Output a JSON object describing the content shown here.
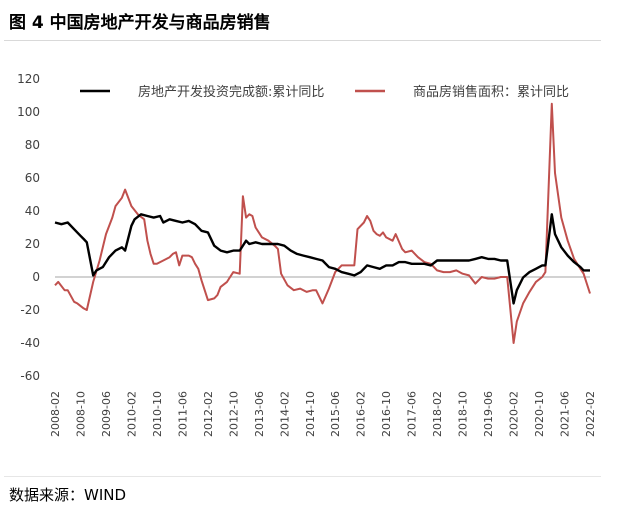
{
  "figure": {
    "title": "图 4  中国房地产开发与商品房销售",
    "source": "数据来源：WIND"
  },
  "chart_data": {
    "type": "line",
    "ylim": [
      -60,
      120
    ],
    "yticks": [
      -60,
      -40,
      -20,
      0,
      20,
      40,
      60,
      80,
      100,
      120
    ],
    "grid": false,
    "legend_position": "top",
    "x_tick_labels": [
      "2008-02",
      "2008-10",
      "2009-06",
      "2010-02",
      "2010-10",
      "2011-06",
      "2012-02",
      "2012-10",
      "2013-06",
      "2014-02",
      "2014-10",
      "2015-06",
      "2016-02",
      "2016-10",
      "2017-06",
      "2018-02",
      "2018-10",
      "2019-06",
      "2020-02",
      "2020-10",
      "2021-06",
      "2022-02"
    ],
    "x_range": [
      "2008-02",
      "2022-02"
    ],
    "series": [
      {
        "name": "房地产开发投资完成额:累计同比",
        "color": "#000000",
        "points": [
          [
            "2008-02",
            33
          ],
          [
            "2008-04",
            32
          ],
          [
            "2008-06",
            33
          ],
          [
            "2008-08",
            29
          ],
          [
            "2008-10",
            25
          ],
          [
            "2008-11",
            23
          ],
          [
            "2008-12",
            21
          ],
          [
            "2009-02",
            1
          ],
          [
            "2009-03",
            4
          ],
          [
            "2009-05",
            6
          ],
          [
            "2009-07",
            12
          ],
          [
            "2009-09",
            16
          ],
          [
            "2009-11",
            18
          ],
          [
            "2009-12",
            16
          ],
          [
            "2010-02",
            31
          ],
          [
            "2010-03",
            35
          ],
          [
            "2010-05",
            38
          ],
          [
            "2010-07",
            37
          ],
          [
            "2010-09",
            36
          ],
          [
            "2010-11",
            37
          ],
          [
            "2010-12",
            33
          ],
          [
            "2011-02",
            35
          ],
          [
            "2011-04",
            34
          ],
          [
            "2011-06",
            33
          ],
          [
            "2011-08",
            34
          ],
          [
            "2011-10",
            32
          ],
          [
            "2011-12",
            28
          ],
          [
            "2012-02",
            27
          ],
          [
            "2012-04",
            19
          ],
          [
            "2012-06",
            16
          ],
          [
            "2012-08",
            15
          ],
          [
            "2012-10",
            16
          ],
          [
            "2012-12",
            16
          ],
          [
            "2013-02",
            22
          ],
          [
            "2013-03",
            20
          ],
          [
            "2013-05",
            21
          ],
          [
            "2013-07",
            20
          ],
          [
            "2013-09",
            20
          ],
          [
            "2013-12",
            20
          ],
          [
            "2014-02",
            19
          ],
          [
            "2014-04",
            16
          ],
          [
            "2014-06",
            14
          ],
          [
            "2014-08",
            13
          ],
          [
            "2014-10",
            12
          ],
          [
            "2014-12",
            11
          ],
          [
            "2015-02",
            10
          ],
          [
            "2015-04",
            6
          ],
          [
            "2015-06",
            5
          ],
          [
            "2015-08",
            3
          ],
          [
            "2015-10",
            2
          ],
          [
            "2015-12",
            1
          ],
          [
            "2016-02",
            3
          ],
          [
            "2016-04",
            7
          ],
          [
            "2016-06",
            6
          ],
          [
            "2016-08",
            5
          ],
          [
            "2016-10",
            7
          ],
          [
            "2016-12",
            7
          ],
          [
            "2017-02",
            9
          ],
          [
            "2017-04",
            9
          ],
          [
            "2017-06",
            8
          ],
          [
            "2017-08",
            8
          ],
          [
            "2017-10",
            8
          ],
          [
            "2017-12",
            7
          ],
          [
            "2018-02",
            10
          ],
          [
            "2018-04",
            10
          ],
          [
            "2018-06",
            10
          ],
          [
            "2018-08",
            10
          ],
          [
            "2018-10",
            10
          ],
          [
            "2018-12",
            10
          ],
          [
            "2019-02",
            11
          ],
          [
            "2019-04",
            12
          ],
          [
            "2019-06",
            11
          ],
          [
            "2019-08",
            11
          ],
          [
            "2019-10",
            10
          ],
          [
            "2019-12",
            10
          ],
          [
            "2020-02",
            -16
          ],
          [
            "2020-03",
            -8
          ],
          [
            "2020-05",
            -0.3
          ],
          [
            "2020-07",
            3
          ],
          [
            "2020-09",
            5
          ],
          [
            "2020-11",
            7
          ],
          [
            "2020-12",
            7
          ],
          [
            "2021-02",
            38
          ],
          [
            "2021-03",
            26
          ],
          [
            "2021-05",
            18
          ],
          [
            "2021-07",
            13
          ],
          [
            "2021-09",
            9
          ],
          [
            "2021-11",
            6
          ],
          [
            "2021-12",
            4
          ],
          [
            "2022-02",
            4
          ]
        ]
      },
      {
        "name": "商品房销售面积：累计同比",
        "color": "#c0504d",
        "points": [
          [
            "2008-02",
            -5
          ],
          [
            "2008-03",
            -3
          ],
          [
            "2008-05",
            -8
          ],
          [
            "2008-06",
            -8
          ],
          [
            "2008-08",
            -15
          ],
          [
            "2008-09",
            -16
          ],
          [
            "2008-11",
            -19
          ],
          [
            "2008-12",
            -20
          ],
          [
            "2009-02",
            -3
          ],
          [
            "2009-04",
            10
          ],
          [
            "2009-06",
            26
          ],
          [
            "2009-08",
            36
          ],
          [
            "2009-09",
            43
          ],
          [
            "2009-11",
            48
          ],
          [
            "2009-12",
            53
          ],
          [
            "2010-02",
            43
          ],
          [
            "2010-04",
            38
          ],
          [
            "2010-06",
            35
          ],
          [
            "2010-07",
            22
          ],
          [
            "2010-08",
            14
          ],
          [
            "2010-09",
            8
          ],
          [
            "2010-10",
            8
          ],
          [
            "2010-11",
            9
          ],
          [
            "2010-12",
            10
          ],
          [
            "2011-02",
            12
          ],
          [
            "2011-03",
            14
          ],
          [
            "2011-04",
            15
          ],
          [
            "2011-05",
            7
          ],
          [
            "2011-06",
            13
          ],
          [
            "2011-08",
            13
          ],
          [
            "2011-09",
            12
          ],
          [
            "2011-10",
            8
          ],
          [
            "2011-11",
            5
          ],
          [
            "2011-12",
            -2
          ],
          [
            "2012-02",
            -14
          ],
          [
            "2012-04",
            -13
          ],
          [
            "2012-05",
            -11
          ],
          [
            "2012-06",
            -6
          ],
          [
            "2012-08",
            -3
          ],
          [
            "2012-09",
            0
          ],
          [
            "2012-10",
            3
          ],
          [
            "2012-12",
            2
          ],
          [
            "2013-01",
            49
          ],
          [
            "2013-02",
            36
          ],
          [
            "2013-03",
            38
          ],
          [
            "2013-04",
            37
          ],
          [
            "2013-05",
            30
          ],
          [
            "2013-06",
            27
          ],
          [
            "2013-07",
            24
          ],
          [
            "2013-09",
            22
          ],
          [
            "2013-11",
            19
          ],
          [
            "2013-12",
            17
          ],
          [
            "2014-01",
            2
          ],
          [
            "2014-03",
            -5
          ],
          [
            "2014-05",
            -8
          ],
          [
            "2014-07",
            -7
          ],
          [
            "2014-09",
            -9
          ],
          [
            "2014-11",
            -8
          ],
          [
            "2014-12",
            -8
          ],
          [
            "2015-02",
            -16
          ],
          [
            "2015-04",
            -7
          ],
          [
            "2015-06",
            3
          ],
          [
            "2015-08",
            7
          ],
          [
            "2015-10",
            7
          ],
          [
            "2015-12",
            7
          ],
          [
            "2016-01",
            29
          ],
          [
            "2016-03",
            33
          ],
          [
            "2016-04",
            37
          ],
          [
            "2016-05",
            34
          ],
          [
            "2016-06",
            28
          ],
          [
            "2016-07",
            26
          ],
          [
            "2016-08",
            25
          ],
          [
            "2016-09",
            27
          ],
          [
            "2016-10",
            24
          ],
          [
            "2016-12",
            22
          ],
          [
            "2017-01",
            26
          ],
          [
            "2017-03",
            17
          ],
          [
            "2017-04",
            15
          ],
          [
            "2017-06",
            16
          ],
          [
            "2017-08",
            12
          ],
          [
            "2017-10",
            9
          ],
          [
            "2017-12",
            8
          ],
          [
            "2018-02",
            4
          ],
          [
            "2018-04",
            3
          ],
          [
            "2018-06",
            3
          ],
          [
            "2018-08",
            4
          ],
          [
            "2018-10",
            2
          ],
          [
            "2018-12",
            1
          ],
          [
            "2019-02",
            -4
          ],
          [
            "2019-04",
            0
          ],
          [
            "2019-06",
            -1
          ],
          [
            "2019-08",
            -1
          ],
          [
            "2019-10",
            0
          ],
          [
            "2019-12",
            0
          ],
          [
            "2020-02",
            -40
          ],
          [
            "2020-03",
            -27
          ],
          [
            "2020-05",
            -16
          ],
          [
            "2020-07",
            -9
          ],
          [
            "2020-09",
            -3
          ],
          [
            "2020-11",
            0
          ],
          [
            "2020-12",
            3
          ],
          [
            "2021-02",
            105
          ],
          [
            "2021-03",
            63
          ],
          [
            "2021-05",
            36
          ],
          [
            "2021-07",
            22
          ],
          [
            "2021-09",
            11
          ],
          [
            "2021-11",
            5
          ],
          [
            "2021-12",
            2
          ],
          [
            "2022-02",
            -10
          ]
        ]
      }
    ]
  }
}
